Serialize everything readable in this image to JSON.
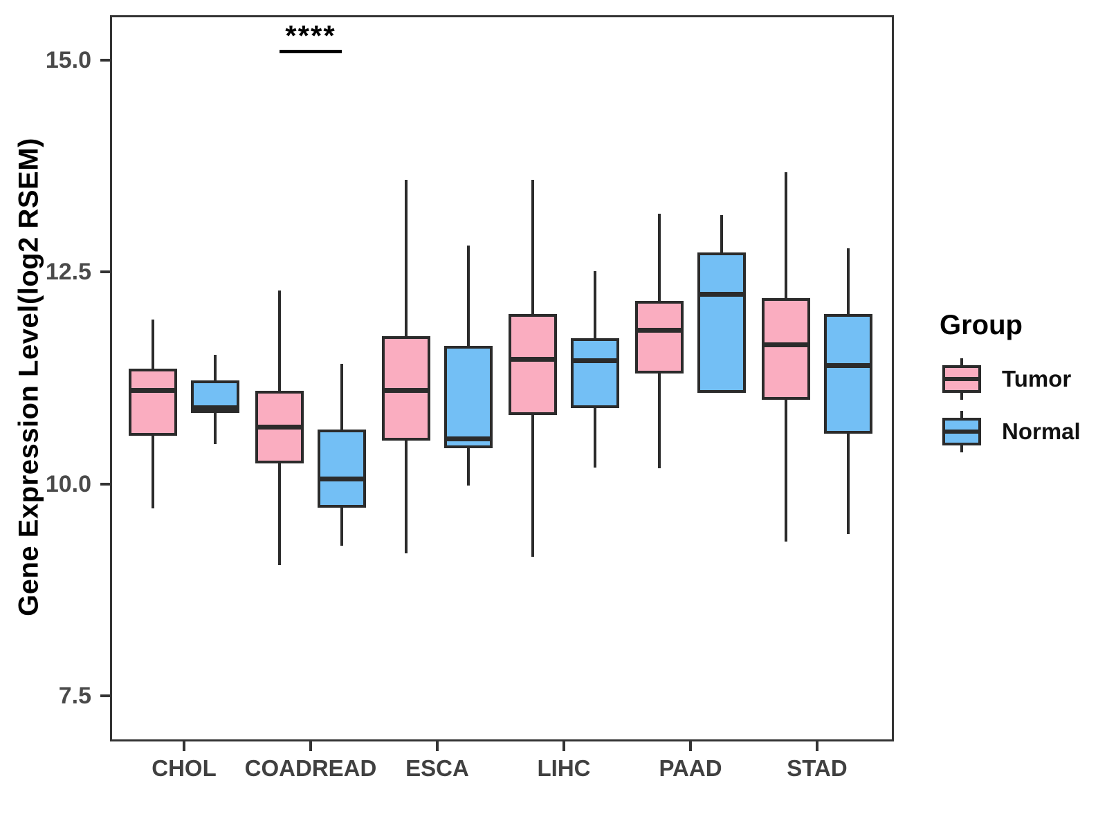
{
  "chart_data": {
    "type": "boxplot",
    "title": "",
    "xlabel": "",
    "ylabel": "Gene Expression Level(log2 RSEM)",
    "legend_title": "Group",
    "legend_position": "right",
    "grid": "off",
    "categories": [
      "CHOL",
      "COADREAD",
      "ESCA",
      "LIHC",
      "PAAD",
      "STAD"
    ],
    "y_ticks": [
      15.0,
      12.5,
      10.0,
      7.5
    ],
    "y_tick_labels": [
      "15.0",
      "12.5",
      "10.0",
      "7.5"
    ],
    "ylim": [
      6.96,
      15.53
    ],
    "colors": {
      "tumor_fill": "#FAADC0",
      "normal_fill": "#73BFF5",
      "stroke": "#2B2B2B",
      "panel_border": "#333333",
      "axis_text": "#4A4A4A",
      "annotation": "#000000"
    },
    "series": [
      {
        "name": "Tumor",
        "color": "#FAADC0",
        "boxes": [
          {
            "category": "CHOL",
            "whisker_low": 9.71,
            "q1": 10.57,
            "median": 11.1,
            "q3": 11.36,
            "whisker_high": 11.94
          },
          {
            "category": "COADREAD",
            "whisker_low": 9.04,
            "q1": 10.24,
            "median": 10.67,
            "q3": 11.1,
            "whisker_high": 12.28
          },
          {
            "category": "ESCA",
            "whisker_low": 9.18,
            "q1": 10.51,
            "median": 11.1,
            "q3": 11.74,
            "whisker_high": 13.59
          },
          {
            "category": "LIHC",
            "whisker_low": 9.14,
            "q1": 10.81,
            "median": 11.47,
            "q3": 12.0,
            "whisker_high": 13.59
          },
          {
            "category": "PAAD",
            "whisker_low": 10.18,
            "q1": 11.3,
            "median": 11.81,
            "q3": 12.16,
            "whisker_high": 13.19
          },
          {
            "category": "STAD",
            "whisker_low": 9.32,
            "q1": 10.99,
            "median": 11.64,
            "q3": 12.19,
            "whisker_high": 13.68
          }
        ]
      },
      {
        "name": "Normal",
        "color": "#73BFF5",
        "boxes": [
          {
            "category": "CHOL",
            "whisker_low": 10.47,
            "q1": 10.84,
            "median": 10.9,
            "q3": 11.22,
            "whisker_high": 11.52
          },
          {
            "category": "COADREAD",
            "whisker_low": 9.27,
            "q1": 9.72,
            "median": 10.06,
            "q3": 10.64,
            "whisker_high": 11.42
          },
          {
            "category": "ESCA",
            "whisker_low": 9.98,
            "q1": 10.42,
            "median": 10.53,
            "q3": 11.63,
            "whisker_high": 12.81
          },
          {
            "category": "LIHC",
            "whisker_low": 10.19,
            "q1": 10.89,
            "median": 11.45,
            "q3": 11.72,
            "whisker_high": 12.51
          },
          {
            "category": "PAAD",
            "whisker_low": 11.07,
            "q1": 11.07,
            "median": 12.24,
            "q3": 12.73,
            "whisker_high": 13.17
          },
          {
            "category": "STAD",
            "whisker_low": 9.41,
            "q1": 10.59,
            "median": 11.4,
            "q3": 12.0,
            "whisker_high": 12.78
          }
        ]
      }
    ],
    "annotations": [
      {
        "text": "****",
        "category": "COADREAD",
        "bar_y": 15.1
      }
    ]
  }
}
